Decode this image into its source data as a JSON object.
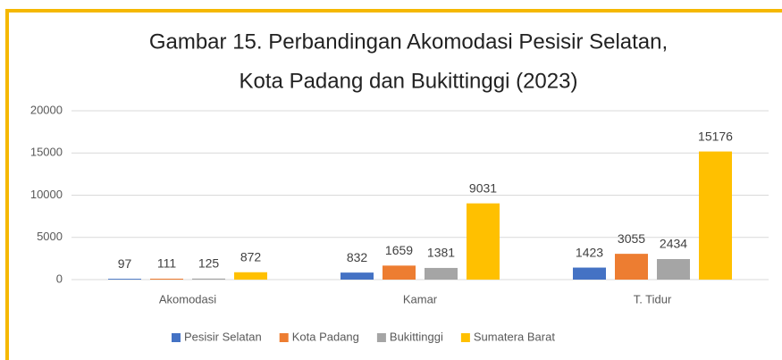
{
  "chart_data": {
    "type": "bar",
    "title": [
      "Gambar 15. Perbandingan Akomodasi Pesisir Selatan,",
      "Kota Padang dan Bukittinggi (2023)"
    ],
    "categories": [
      "Akomodasi",
      "Kamar",
      "T. Tidur"
    ],
    "series": [
      {
        "name": "Pesisir Selatan",
        "color": "#4472c4",
        "values": [
          97,
          832,
          1423
        ]
      },
      {
        "name": "Kota Padang",
        "color": "#ed7d31",
        "values": [
          111,
          1659,
          3055
        ]
      },
      {
        "name": "Bukittinggi",
        "color": "#a5a5a5",
        "values": [
          125,
          1381,
          2434
        ]
      },
      {
        "name": "Sumatera Barat",
        "color": "#ffc000",
        "values": [
          872,
          9031,
          15176
        ]
      }
    ],
    "ylim": [
      0,
      20000
    ],
    "yticks": [
      0,
      5000,
      10000,
      15000,
      20000
    ],
    "grid": true,
    "legend": "bottom"
  }
}
